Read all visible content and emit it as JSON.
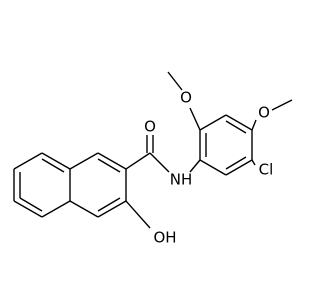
{
  "labels": [
    "O",
    "NH",
    "OH",
    "O",
    "O",
    "Cl"
  ]
}
